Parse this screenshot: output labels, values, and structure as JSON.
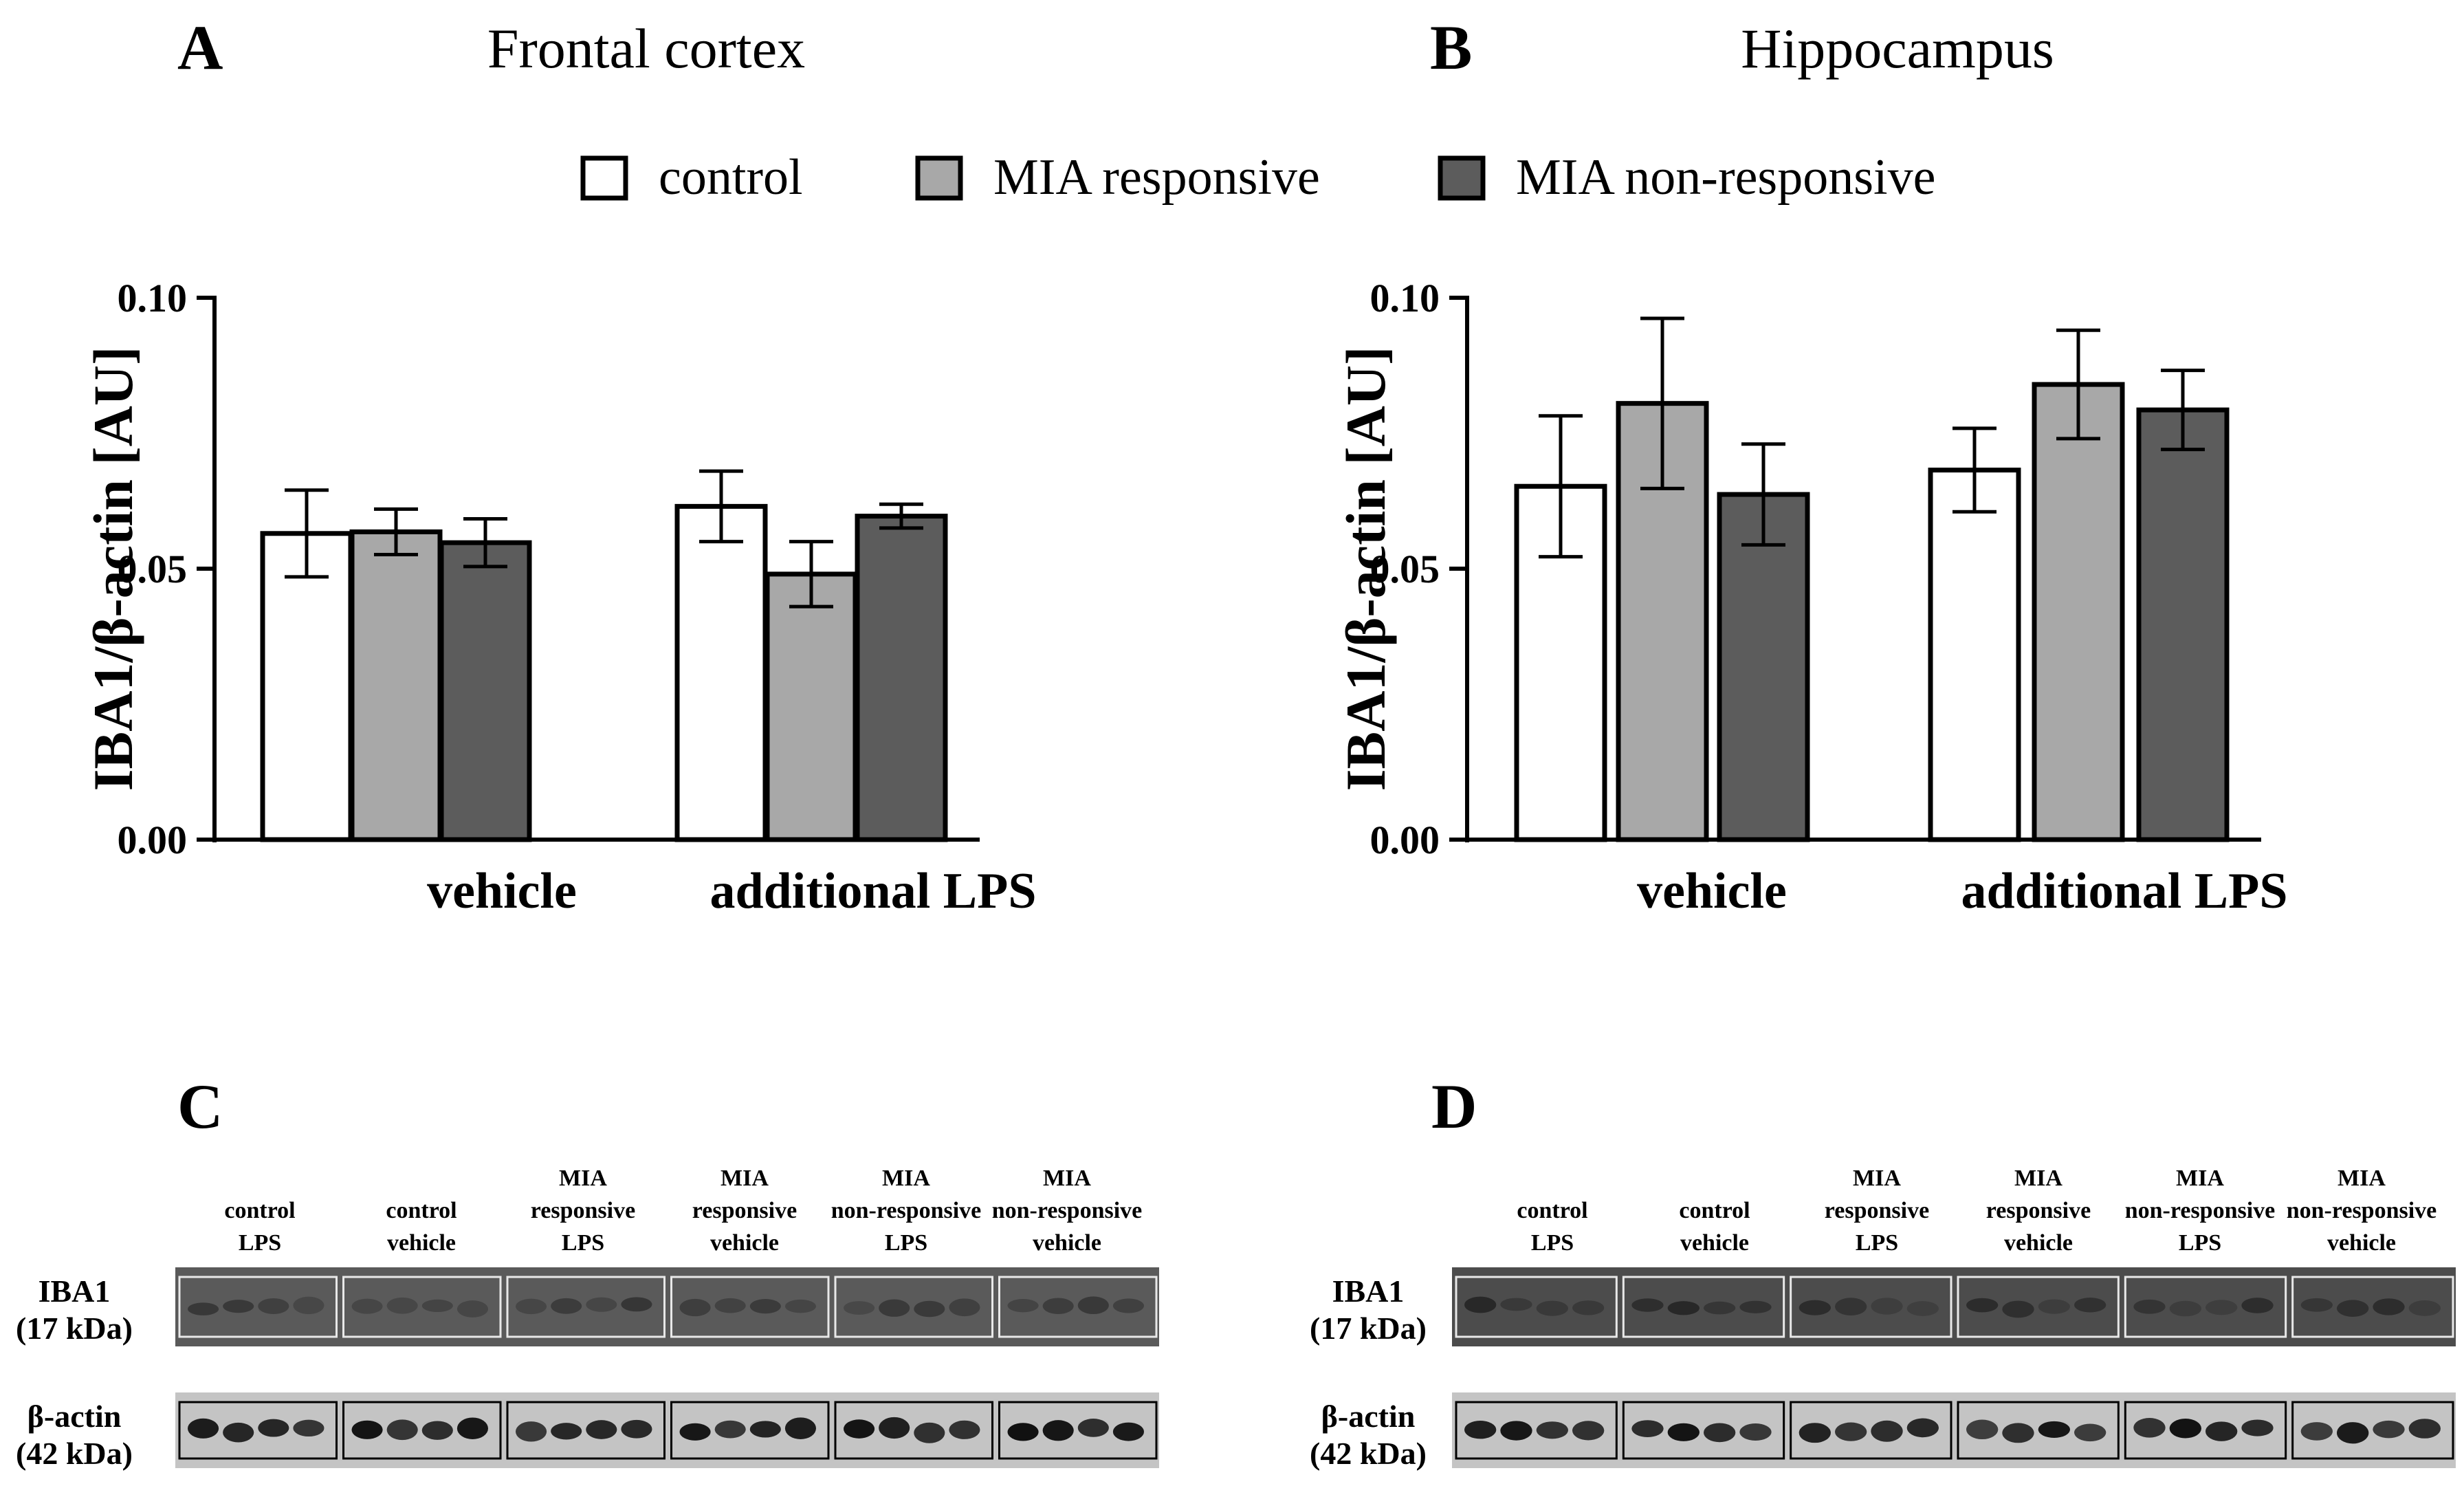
{
  "legend": [
    {
      "label": "control",
      "fill": "#ffffff"
    },
    {
      "label": "MIA responsive",
      "fill": "#a8a8a8"
    },
    {
      "label": "MIA non-responsive",
      "fill": "#5c5c5c"
    }
  ],
  "chart_data": [
    {
      "type": "bar",
      "panel": "A",
      "title": "Frontal cortex",
      "ylabel": "IBA1/β-actin [AU]",
      "xlabel": "",
      "ylim": [
        0,
        0.1
      ],
      "yticks": [
        "0.00",
        "0.05",
        "0.10"
      ],
      "categories": [
        "vehicle",
        "additional LPS"
      ],
      "series": [
        {
          "name": "control",
          "values": [
            0.0565,
            0.0615
          ],
          "errors": [
            0.008,
            0.0065
          ]
        },
        {
          "name": "MIA responsive",
          "values": [
            0.0568,
            0.049
          ],
          "errors": [
            0.0042,
            0.006
          ]
        },
        {
          "name": "MIA non-responsive",
          "values": [
            0.0548,
            0.0597
          ],
          "errors": [
            0.0044,
            0.0022
          ]
        }
      ]
    },
    {
      "type": "bar",
      "panel": "B",
      "title": "Hippocampus",
      "ylabel": "IBA1/β-actin [AU]",
      "xlabel": "",
      "ylim": [
        0,
        0.1
      ],
      "yticks": [
        "0.00",
        "0.05",
        "0.10"
      ],
      "categories": [
        "vehicle",
        "additional LPS"
      ],
      "series": [
        {
          "name": "control",
          "values": [
            0.0652,
            0.0682
          ],
          "errors": [
            0.013,
            0.0077
          ]
        },
        {
          "name": "MIA responsive",
          "values": [
            0.0805,
            0.084
          ],
          "errors": [
            0.0157,
            0.01
          ]
        },
        {
          "name": "MIA non-responsive",
          "values": [
            0.0637,
            0.0793
          ],
          "errors": [
            0.0093,
            0.0073
          ]
        }
      ]
    }
  ],
  "blots": [
    {
      "panel": "C",
      "lanes": [
        [
          "control",
          "LPS"
        ],
        [
          "control",
          "vehicle"
        ],
        [
          "MIA",
          "responsive",
          "LPS"
        ],
        [
          "MIA",
          "responsive",
          "vehicle"
        ],
        [
          "MIA",
          "non-responsive",
          "LPS"
        ],
        [
          "MIA",
          "non-responsive",
          "vehicle"
        ]
      ],
      "rows": [
        {
          "label": [
            "IBA1",
            "(17 kDa)"
          ],
          "kind": "iba1"
        },
        {
          "label": [
            "β-actin",
            "(42 kDa)"
          ],
          "kind": "actin"
        }
      ]
    },
    {
      "panel": "D",
      "lanes": [
        [
          "control",
          "LPS"
        ],
        [
          "control",
          "vehicle"
        ],
        [
          "MIA",
          "responsive",
          "LPS"
        ],
        [
          "MIA",
          "responsive",
          "vehicle"
        ],
        [
          "MIA",
          "non-responsive",
          "LPS"
        ],
        [
          "MIA",
          "non-responsive",
          "vehicle"
        ]
      ],
      "rows": [
        {
          "label": [
            "IBA1",
            "(17 kDa)"
          ],
          "kind": "iba1"
        },
        {
          "label": [
            "β-actin",
            "(42 kDa)"
          ],
          "kind": "actin"
        }
      ]
    }
  ]
}
